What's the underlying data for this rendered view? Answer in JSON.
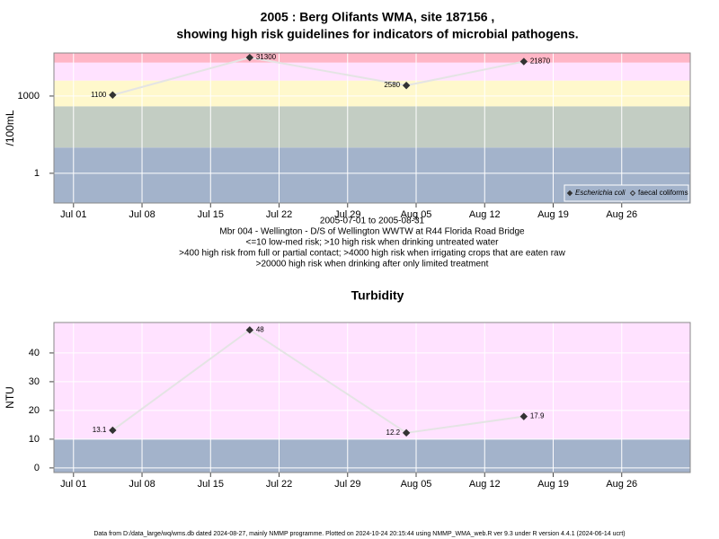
{
  "chart_data": [
    {
      "type": "line",
      "title": "2005 : Berg Olifants WMA, site 187156 ,",
      "subtitle": "showing high risk guidelines for indicators of microbial pathogens.",
      "ylabel": "/100mL",
      "xlabel": "2005-07-01 to 2005-08-31",
      "notes": [
        "Mbr 004 - Wellington - D/S of Wellington WWTW at R44 Florida Road Bridge",
        "<=10 low-med risk; >10 high risk when drinking untreated water",
        ">400 high risk from full or partial contact; >4000 high risk when irrigating crops that are eaten raw",
        ">20000 high risk when drinking after only limited treatment"
      ],
      "x": [
        "2005-07-05",
        "2005-07-19",
        "2005-08-04",
        "2005-08-16"
      ],
      "series": [
        {
          "name": "Escherichia coli",
          "color": "#333333",
          "line_color": "#e4e4e4",
          "marker": "filled",
          "values": [
            1100,
            31300,
            2580,
            21870
          ]
        },
        {
          "name": "faecal coliforms",
          "color": "#333333",
          "line_color": "#e4e4e4",
          "marker": "open",
          "values": [
            null,
            null,
            null,
            null
          ]
        }
      ],
      "xlim": [
        "2005-06-29",
        "2005-09-02"
      ],
      "xticks": [
        {
          "value": "2005-07-01",
          "label": "Jul 01"
        },
        {
          "value": "2005-07-08",
          "label": "Jul 08"
        },
        {
          "value": "2005-07-15",
          "label": "Jul 15"
        },
        {
          "value": "2005-07-22",
          "label": "Jul 22"
        },
        {
          "value": "2005-07-29",
          "label": "Jul 29"
        },
        {
          "value": "2005-08-05",
          "label": "Aug 05"
        },
        {
          "value": "2005-08-12",
          "label": "Aug 12"
        },
        {
          "value": "2005-08-19",
          "label": "Aug 19"
        },
        {
          "value": "2005-08-26",
          "label": "Aug 26"
        }
      ],
      "ylim": [
        0.07,
        47000
      ],
      "yticks": [
        1,
        1000
      ],
      "log_y": true,
      "grid": true,
      "legend": "bottom-right",
      "bands": [
        {
          "from": 0.07,
          "to": 10,
          "color": "#a3b3cb"
        },
        {
          "from": 10,
          "to": 400,
          "color": "#c3cdc3"
        },
        {
          "from": 400,
          "to": 4000,
          "color": "#fff8cc"
        },
        {
          "from": 4000,
          "to": 20000,
          "color": "#ffe2ff"
        },
        {
          "from": 20000,
          "to": 47000,
          "color": "#ffb6c6"
        }
      ]
    },
    {
      "type": "line",
      "title": "Turbidity",
      "ylabel": "NTU",
      "x": [
        "2005-07-05",
        "2005-07-19",
        "2005-08-04",
        "2005-08-16"
      ],
      "series": [
        {
          "color": "#333333",
          "line_color": "#e4e4e4",
          "marker": "filled",
          "values": [
            13.1,
            48,
            12.2,
            17.9
          ]
        }
      ],
      "xlim": [
        "2005-06-29",
        "2005-09-02"
      ],
      "xticks": [
        {
          "value": "2005-07-01",
          "label": "Jul 01"
        },
        {
          "value": "2005-07-08",
          "label": "Jul 08"
        },
        {
          "value": "2005-07-15",
          "label": "Jul 15"
        },
        {
          "value": "2005-07-22",
          "label": "Jul 22"
        },
        {
          "value": "2005-07-29",
          "label": "Jul 29"
        },
        {
          "value": "2005-08-05",
          "label": "Aug 05"
        },
        {
          "value": "2005-08-12",
          "label": "Aug 12"
        },
        {
          "value": "2005-08-19",
          "label": "Aug 19"
        },
        {
          "value": "2005-08-26",
          "label": "Aug 26"
        }
      ],
      "ylim": [
        -1.6,
        50.6
      ],
      "yticks": [
        0,
        10,
        20,
        30,
        40
      ],
      "log_y": false,
      "grid": true,
      "bands": [
        {
          "from": -1.6,
          "to": 10,
          "color": "#a3b3cb"
        },
        {
          "from": 10,
          "to": 50.6,
          "color": "#ffe2ff"
        }
      ]
    }
  ],
  "footer": "Data from D:/data_large/wq/wms.db dated 2024-08-27, mainly NMMP programme. Plotted on 2024-10-24 20:15:44 using NMMP_WMA_web.R ver 9.3 under R version 4.4.1 (2024-06-14 ucrt)"
}
